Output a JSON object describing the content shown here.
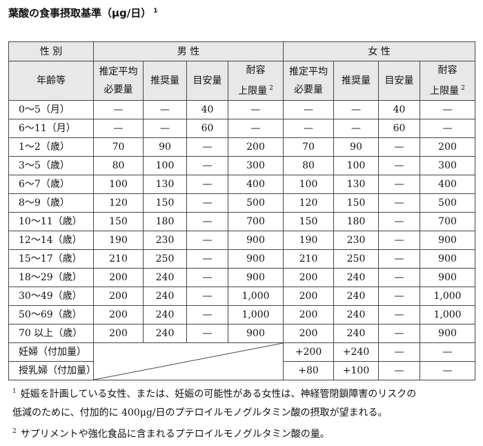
{
  "header": {
    "title": "葉酸の食事摂取基準（μg/日）",
    "title_note": "1"
  },
  "table": {
    "head": {
      "sex": "性 別",
      "male": "男 性",
      "female": "女 性",
      "age": "年齢等",
      "columns": [
        {
          "lines": [
            "推定平均",
            "必要量"
          ]
        },
        {
          "lines": [
            "推奨量"
          ]
        },
        {
          "lines": [
            "目安量"
          ]
        },
        {
          "lines": [
            "耐容",
            "上限量"
          ],
          "note": "2"
        }
      ]
    },
    "rows": [
      [
        "0～5（月）",
        "—",
        "—",
        "40",
        "—",
        "—",
        "—",
        "40",
        "—"
      ],
      [
        "6～11（月）",
        "—",
        "—",
        "60",
        "—",
        "—",
        "—",
        "60",
        "—"
      ],
      [
        "1～2（歳）",
        "70",
        "90",
        "—",
        "200",
        "70",
        "90",
        "—",
        "200"
      ],
      [
        "3～5（歳）",
        "80",
        "100",
        "—",
        "300",
        "80",
        "100",
        "—",
        "300"
      ],
      [
        "6～7（歳）",
        "100",
        "130",
        "—",
        "400",
        "100",
        "130",
        "—",
        "400"
      ],
      [
        "8～9（歳）",
        "120",
        "150",
        "—",
        "500",
        "120",
        "150",
        "—",
        "500"
      ],
      [
        "10～11（歳）",
        "150",
        "180",
        "—",
        "700",
        "150",
        "180",
        "—",
        "700"
      ],
      [
        "12～14（歳）",
        "190",
        "230",
        "—",
        "900",
        "190",
        "230",
        "—",
        "900"
      ],
      [
        "15～17（歳）",
        "210",
        "250",
        "—",
        "900",
        "210",
        "250",
        "—",
        "900"
      ],
      [
        "18～29（歳）",
        "200",
        "240",
        "—",
        "900",
        "200",
        "240",
        "—",
        "900"
      ],
      [
        "30～49（歳）",
        "200",
        "240",
        "—",
        "1,000",
        "200",
        "240",
        "—",
        "1,000"
      ],
      [
        "50～69（歳）",
        "200",
        "240",
        "—",
        "1,000",
        "200",
        "240",
        "—",
        "1,000"
      ],
      [
        "70 以上（歳）",
        "200",
        "240",
        "—",
        "900",
        "200",
        "240",
        "—",
        "900"
      ]
    ],
    "supplements": [
      [
        "妊婦（付加量）",
        "+200",
        "+240",
        "—",
        "—"
      ],
      [
        "授乳婦（付加量）",
        "+80",
        "+100",
        "—",
        "—"
      ]
    ]
  },
  "footnotes": [
    {
      "mark": "1",
      "lines": [
        "妊娠を計画している女性、または、妊娠の可能性がある女性は、神経管閉鎖障害のリスクの",
        "低減のために、付加的に 400μg/日のプテロイルモノグルタミン酸の摂取が望まれる。"
      ]
    },
    {
      "mark": "2",
      "lines": [
        "サプリメントや強化食品に含まれるプテロイルモノグルタミン酸の量。"
      ]
    }
  ]
}
